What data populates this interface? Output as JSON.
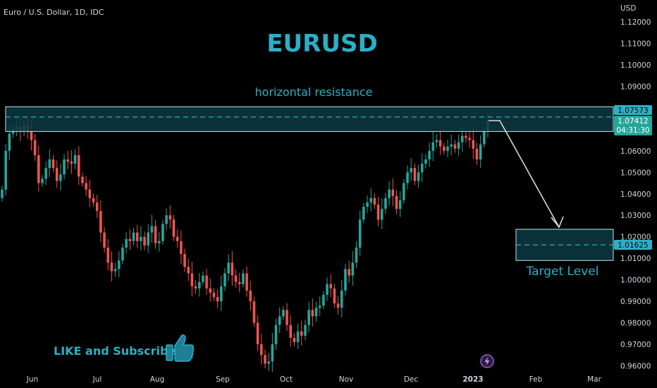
{
  "symbol_title": "Euro / U.S. Dollar, 1D, IDC",
  "currency_label": "USD",
  "headline": "EURUSD",
  "resistance_label": "horizontal resistance",
  "target_label": "Target Level",
  "cta_label": "LIKE and Subscribe",
  "icons": {
    "cta": "thumbs-up-icon",
    "bottom": "lightning-icon"
  },
  "colors": {
    "up": "#26a69a",
    "down": "#ef5350",
    "accent": "#2ab0c7",
    "zone_fill": "#0d3a42",
    "arrow": "#d9d9d9",
    "text": "#d1d4dc"
  },
  "price_tags": {
    "resistance": "1.07573",
    "current_price": "1.07412",
    "countdown": "04:31:30",
    "target": "1.01625"
  },
  "chart_data": {
    "type": "candlestick",
    "title": "EURUSD",
    "ylim": [
      0.955,
      1.128
    ],
    "y_ticks": [
      "1.12000",
      "1.11000",
      "1.10000",
      "1.09000",
      "1.08000",
      "1.07000",
      "1.06000",
      "1.05000",
      "1.04000",
      "1.03000",
      "1.02000",
      "1.01000",
      "1.00000",
      "0.99000",
      "0.98000",
      "0.97000",
      "0.96000"
    ],
    "x_ticks": [
      "Jun",
      "Jul",
      "Aug",
      "Sep",
      "Oct",
      "Nov",
      "Dec",
      "2023",
      "Feb",
      "Mar"
    ],
    "bold_x_tick": "2023",
    "resistance_zone": [
      1.069,
      1.0805
    ],
    "resistance_level": 1.07573,
    "target_zone": [
      1.009,
      1.0235
    ],
    "target_level": 1.01625,
    "current_price": 1.07412,
    "closes": [
      1.042,
      1.06,
      1.068,
      1.07,
      1.071,
      1.069,
      1.072,
      1.069,
      1.065,
      1.058,
      1.045,
      1.047,
      1.052,
      1.056,
      1.052,
      1.046,
      1.049,
      1.056,
      1.055,
      1.054,
      1.058,
      1.048,
      1.045,
      1.042,
      1.038,
      1.036,
      1.032,
      1.022,
      1.015,
      1.008,
      1.004,
      1.005,
      1.009,
      1.015,
      1.019,
      1.018,
      1.022,
      1.018,
      1.02,
      1.016,
      1.022,
      1.025,
      1.017,
      1.018,
      1.026,
      1.03,
      1.028,
      1.02,
      1.018,
      1.012,
      1.006,
      1.003,
      0.997,
      0.996,
      0.999,
      1.002,
      0.996,
      0.994,
      0.992,
      0.99,
      0.997,
      1.003,
      1.008,
      1.002,
      0.999,
      0.998,
      1.003,
      0.995,
      0.99,
      0.98,
      0.97,
      0.965,
      0.961,
      0.962,
      0.97,
      0.979,
      0.983,
      0.986,
      0.979,
      0.973,
      0.971,
      0.976,
      0.974,
      0.979,
      0.986,
      0.983,
      0.987,
      0.988,
      0.993,
      0.998,
      0.996,
      0.989,
      0.987,
      0.995,
      1.005,
      1.002,
      1.008,
      1.015,
      1.028,
      1.034,
      1.036,
      1.038,
      1.035,
      1.028,
      1.033,
      1.038,
      1.042,
      1.039,
      1.033,
      1.037,
      1.045,
      1.05,
      1.052,
      1.046,
      1.05,
      1.054,
      1.056,
      1.06,
      1.064,
      1.065,
      1.062,
      1.06,
      1.062,
      1.063,
      1.061,
      1.064,
      1.067,
      1.066,
      1.065,
      1.061,
      1.056,
      1.063,
      1.069,
      1.07412
    ]
  }
}
